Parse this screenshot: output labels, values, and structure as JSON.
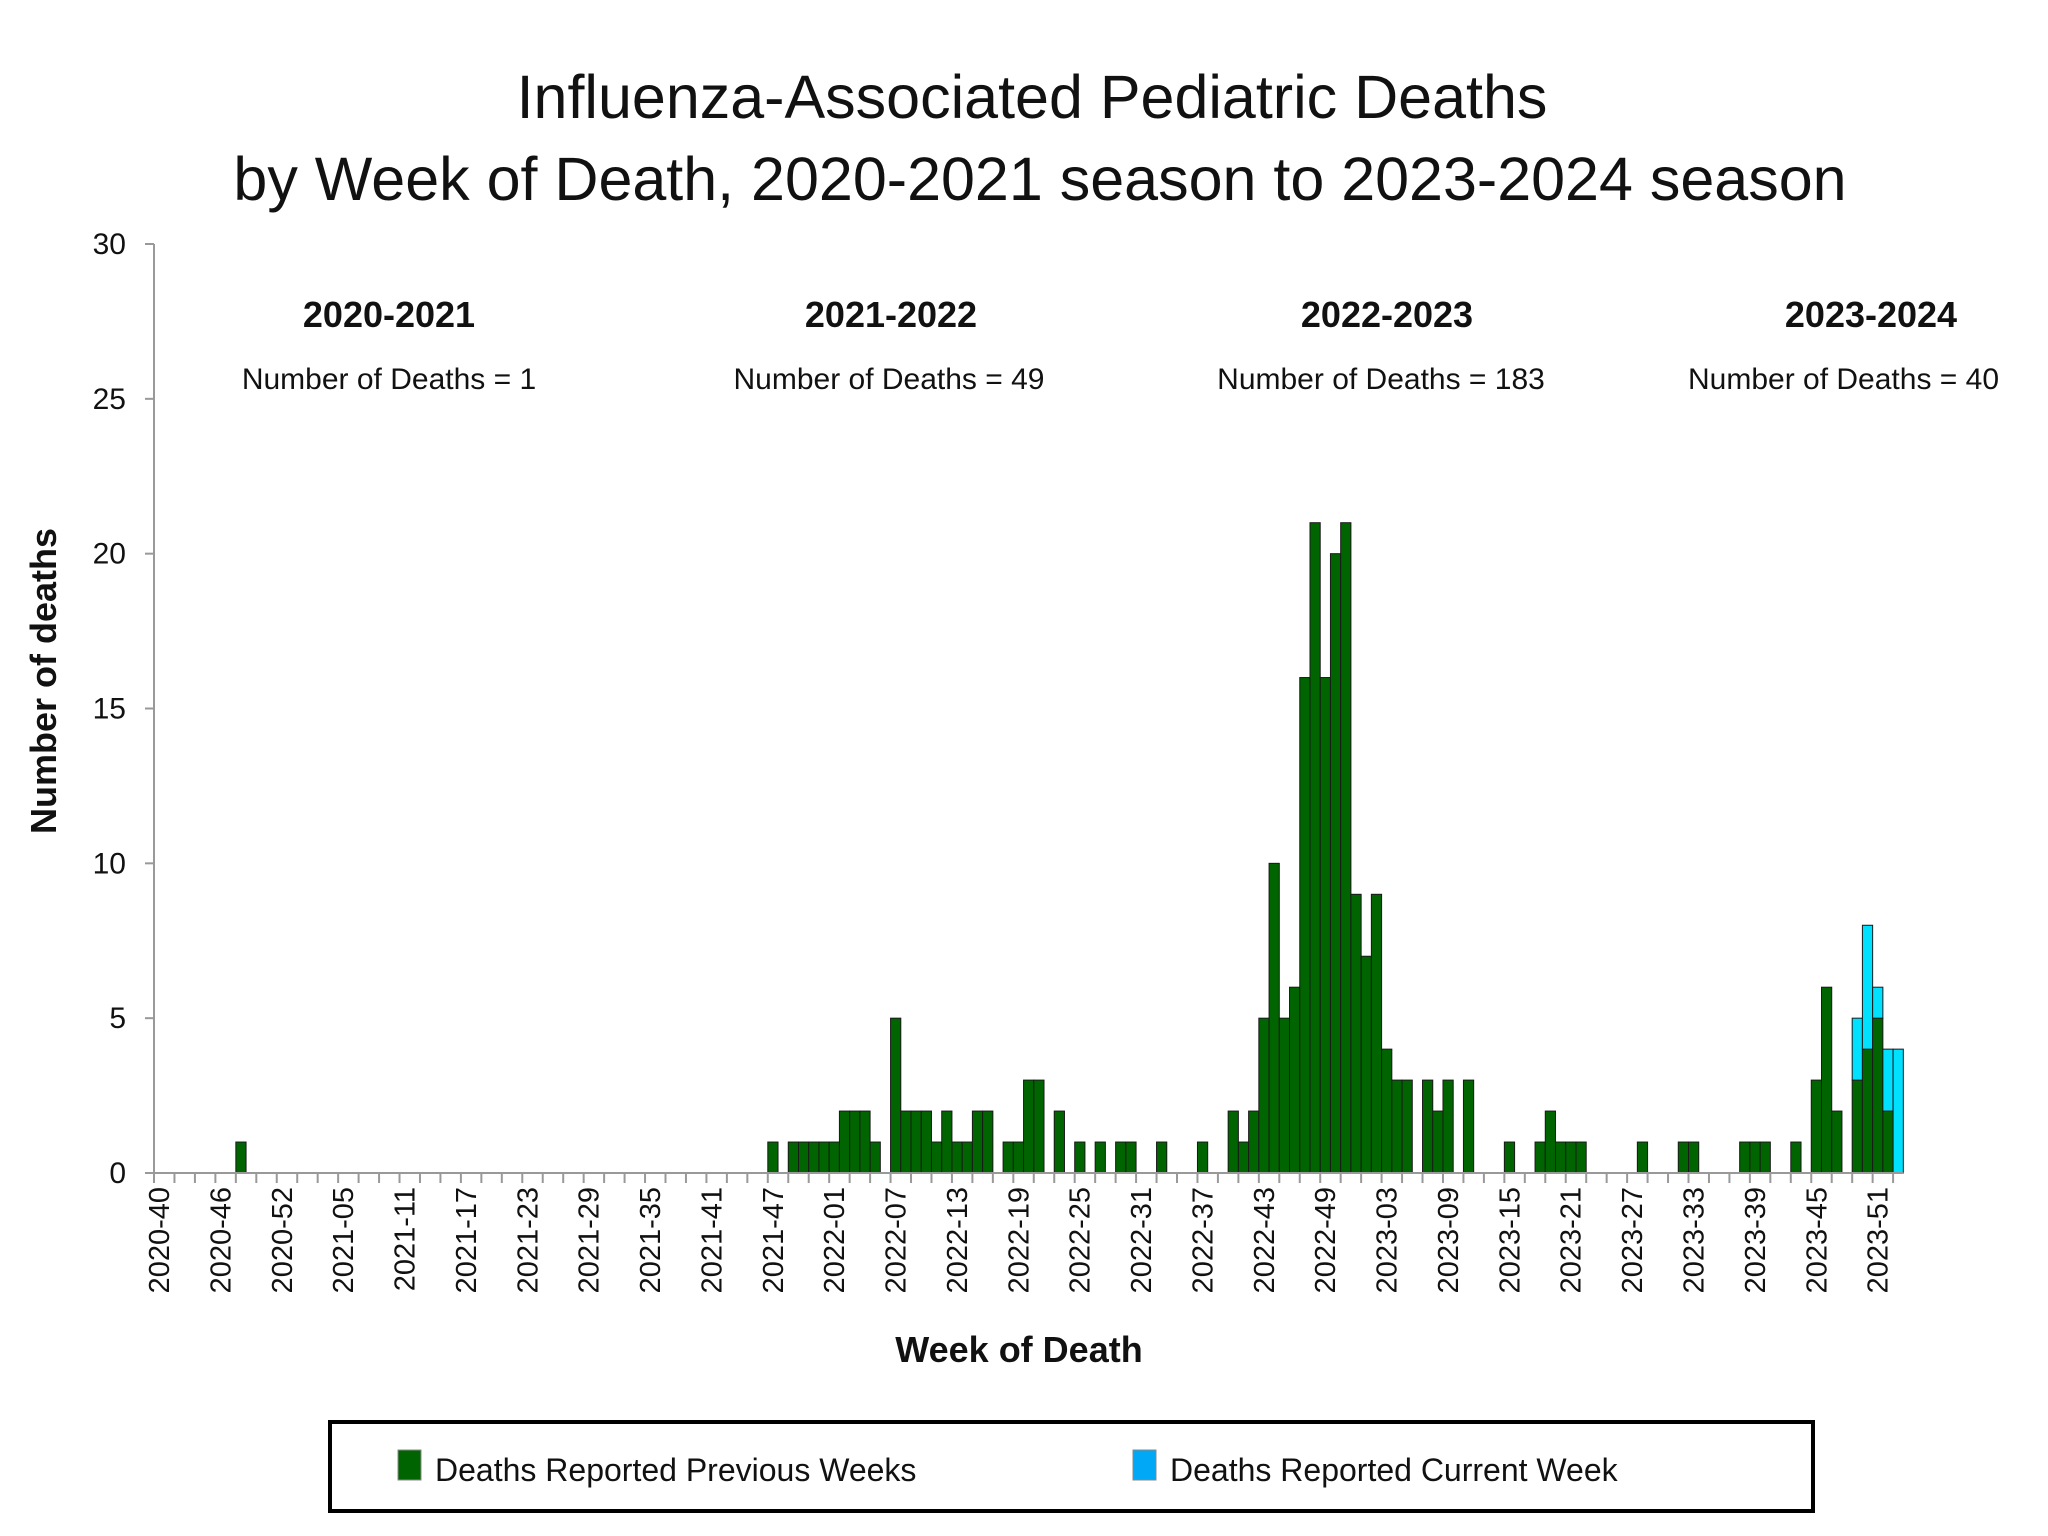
{
  "chart_data": {
    "type": "bar",
    "stacked": true,
    "title": [
      "Influenza-Associated Pediatric Deaths",
      "by Week of Death, 2020-2021 season to 2023-2024 season"
    ],
    "xlabel": "Week of Death",
    "ylabel": "Number of deaths",
    "ylim": [
      0,
      30
    ],
    "yticks": [
      "0",
      "5",
      "10",
      "15",
      "20",
      "25",
      "30"
    ],
    "grid": false,
    "legend_position": "bottom",
    "seasons": [
      {
        "label": "2020-2021",
        "count_text": "Number of Deaths = 1"
      },
      {
        "label": "2021-2022",
        "count_text": "Number of Deaths = 49"
      },
      {
        "label": "2022-2023",
        "count_text": "Number of Deaths = 183"
      },
      {
        "label": "2023-2024",
        "count_text": "Number of Deaths = 40"
      }
    ],
    "categories": [
      "2020-40",
      "2020-41",
      "2020-42",
      "2020-43",
      "2020-44",
      "2020-45",
      "2020-46",
      "2020-47",
      "2020-48",
      "2020-49",
      "2020-50",
      "2020-51",
      "2020-52",
      "2020-53",
      "2021-01",
      "2021-02",
      "2021-03",
      "2021-04",
      "2021-05",
      "2021-06",
      "2021-07",
      "2021-08",
      "2021-09",
      "2021-10",
      "2021-11",
      "2021-12",
      "2021-13",
      "2021-14",
      "2021-15",
      "2021-16",
      "2021-17",
      "2021-18",
      "2021-19",
      "2021-20",
      "2021-21",
      "2021-22",
      "2021-23",
      "2021-24",
      "2021-25",
      "2021-26",
      "2021-27",
      "2021-28",
      "2021-29",
      "2021-30",
      "2021-31",
      "2021-32",
      "2021-33",
      "2021-34",
      "2021-35",
      "2021-36",
      "2021-37",
      "2021-38",
      "2021-39",
      "2021-40",
      "2021-41",
      "2021-42",
      "2021-43",
      "2021-44",
      "2021-45",
      "2021-46",
      "2021-47",
      "2021-48",
      "2021-49",
      "2021-50",
      "2021-51",
      "2021-52",
      "2022-01",
      "2022-02",
      "2022-03",
      "2022-04",
      "2022-05",
      "2022-06",
      "2022-07",
      "2022-08",
      "2022-09",
      "2022-10",
      "2022-11",
      "2022-12",
      "2022-13",
      "2022-14",
      "2022-15",
      "2022-16",
      "2022-17",
      "2022-18",
      "2022-19",
      "2022-20",
      "2022-21",
      "2022-22",
      "2022-23",
      "2022-24",
      "2022-25",
      "2022-26",
      "2022-27",
      "2022-28",
      "2022-29",
      "2022-30",
      "2022-31",
      "2022-32",
      "2022-33",
      "2022-34",
      "2022-35",
      "2022-36",
      "2022-37",
      "2022-38",
      "2022-39",
      "2022-40",
      "2022-41",
      "2022-42",
      "2022-43",
      "2022-44",
      "2022-45",
      "2022-46",
      "2022-47",
      "2022-48",
      "2022-49",
      "2022-50",
      "2022-51",
      "2022-52",
      "2023-01",
      "2023-02",
      "2023-03",
      "2023-04",
      "2023-05",
      "2023-06",
      "2023-07",
      "2023-08",
      "2023-09",
      "2023-10",
      "2023-11",
      "2023-12",
      "2023-13",
      "2023-14",
      "2023-15",
      "2023-16",
      "2023-17",
      "2023-18",
      "2023-19",
      "2023-20",
      "2023-21",
      "2023-22",
      "2023-23",
      "2023-24",
      "2023-25",
      "2023-26",
      "2023-27",
      "2023-28",
      "2023-29",
      "2023-30",
      "2023-31",
      "2023-32",
      "2023-33",
      "2023-34",
      "2023-35",
      "2023-36",
      "2023-37",
      "2023-38",
      "2023-39",
      "2023-40",
      "2023-41",
      "2023-42",
      "2023-43",
      "2023-44",
      "2023-45",
      "2023-46",
      "2023-47",
      "2023-48",
      "2023-49",
      "2023-50",
      "2023-51",
      "2023-52",
      "2024-01"
    ],
    "series": [
      {
        "name": "Deaths Reported Previous Weeks",
        "color": "#006400",
        "values": [
          0,
          0,
          0,
          0,
          0,
          0,
          0,
          0,
          1,
          0,
          0,
          0,
          0,
          0,
          0,
          0,
          0,
          0,
          0,
          0,
          0,
          0,
          0,
          0,
          0,
          0,
          0,
          0,
          0,
          0,
          0,
          0,
          0,
          0,
          0,
          0,
          0,
          0,
          0,
          0,
          0,
          0,
          0,
          0,
          0,
          0,
          0,
          0,
          0,
          0,
          0,
          0,
          0,
          0,
          0,
          0,
          0,
          0,
          0,
          0,
          1,
          0,
          1,
          1,
          1,
          1,
          1,
          2,
          2,
          2,
          1,
          0,
          5,
          2,
          2,
          2,
          1,
          2,
          1,
          1,
          2,
          2,
          0,
          1,
          1,
          3,
          3,
          0,
          2,
          0,
          1,
          0,
          1,
          0,
          1,
          1,
          0,
          0,
          1,
          0,
          0,
          0,
          1,
          0,
          0,
          2,
          1,
          2,
          5,
          10,
          5,
          6,
          16,
          21,
          16,
          20,
          21,
          9,
          7,
          9,
          4,
          3,
          3,
          0,
          3,
          2,
          3,
          0,
          3,
          0,
          0,
          0,
          1,
          0,
          0,
          1,
          2,
          1,
          1,
          1,
          0,
          0,
          0,
          0,
          0,
          1,
          0,
          0,
          0,
          1,
          1,
          0,
          0,
          0,
          0,
          1,
          1,
          1,
          0,
          0,
          1,
          0,
          3,
          6,
          2,
          0,
          3,
          4,
          5,
          2,
          0
        ]
      },
      {
        "name": "Deaths Reported Current Week",
        "color": "#00E1FF",
        "legend_color": "#00A8F5",
        "values": [
          0,
          0,
          0,
          0,
          0,
          0,
          0,
          0,
          0,
          0,
          0,
          0,
          0,
          0,
          0,
          0,
          0,
          0,
          0,
          0,
          0,
          0,
          0,
          0,
          0,
          0,
          0,
          0,
          0,
          0,
          0,
          0,
          0,
          0,
          0,
          0,
          0,
          0,
          0,
          0,
          0,
          0,
          0,
          0,
          0,
          0,
          0,
          0,
          0,
          0,
          0,
          0,
          0,
          0,
          0,
          0,
          0,
          0,
          0,
          0,
          0,
          0,
          0,
          0,
          0,
          0,
          0,
          0,
          0,
          0,
          0,
          0,
          0,
          0,
          0,
          0,
          0,
          0,
          0,
          0,
          0,
          0,
          0,
          0,
          0,
          0,
          0,
          0,
          0,
          0,
          0,
          0,
          0,
          0,
          0,
          0,
          0,
          0,
          0,
          0,
          0,
          0,
          0,
          0,
          0,
          0,
          0,
          0,
          0,
          0,
          0,
          0,
          0,
          0,
          0,
          0,
          0,
          0,
          0,
          0,
          0,
          0,
          0,
          0,
          0,
          0,
          0,
          0,
          0,
          0,
          0,
          0,
          0,
          0,
          0,
          0,
          0,
          0,
          0,
          0,
          0,
          0,
          0,
          0,
          0,
          0,
          0,
          0,
          0,
          0,
          0,
          0,
          0,
          0,
          0,
          0,
          0,
          0,
          0,
          0,
          0,
          0,
          0,
          0,
          0,
          0,
          2,
          4,
          1,
          2,
          4
        ]
      }
    ]
  }
}
